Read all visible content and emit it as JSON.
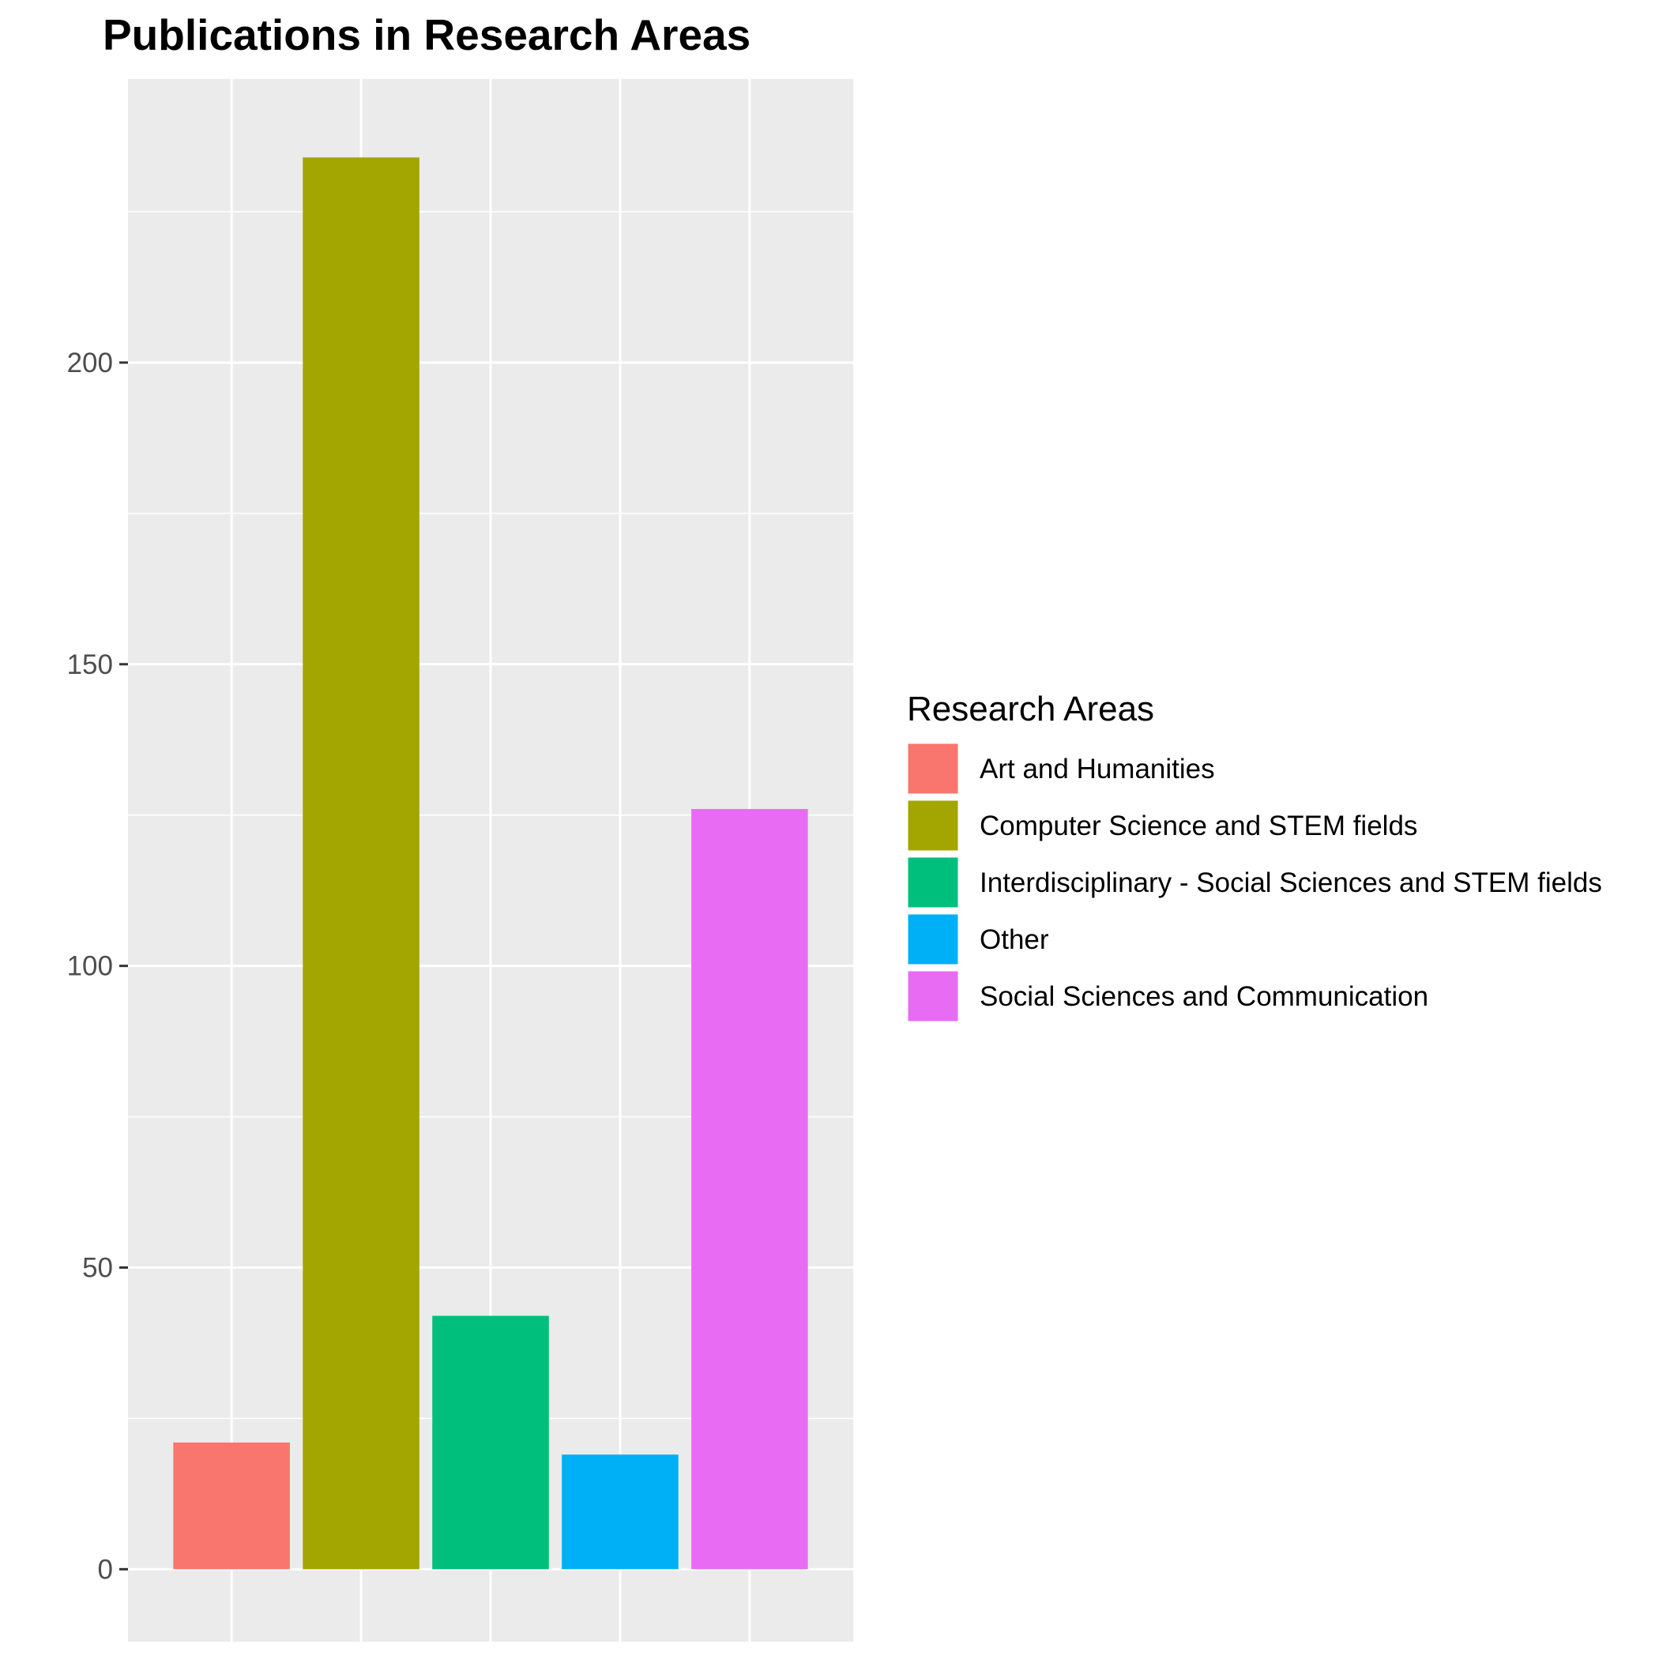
{
  "chart_data": {
    "type": "bar",
    "title": "Publications in Research Areas",
    "xlabel": "",
    "ylabel": "",
    "categories": [
      "Art and Humanities",
      "Computer Science and STEM fields",
      "Interdisciplinary - Social Sciences and STEM fields",
      "Other",
      "Social Sciences and Communication"
    ],
    "values": [
      21,
      234,
      42,
      19,
      126
    ],
    "colors": [
      "#F8766D",
      "#A3A500",
      "#00BF7D",
      "#00B0F6",
      "#E76BF3"
    ],
    "ylim": [
      -12,
      247
    ],
    "yticks": [
      0,
      50,
      100,
      150,
      200
    ],
    "ytick_labels": [
      "0",
      "50",
      "100",
      "150",
      "200"
    ],
    "grid": true,
    "panel_background": "#EBEBEB",
    "grid_color": "#FFFFFF",
    "legend": {
      "title": "Research Areas",
      "position": "right"
    }
  }
}
